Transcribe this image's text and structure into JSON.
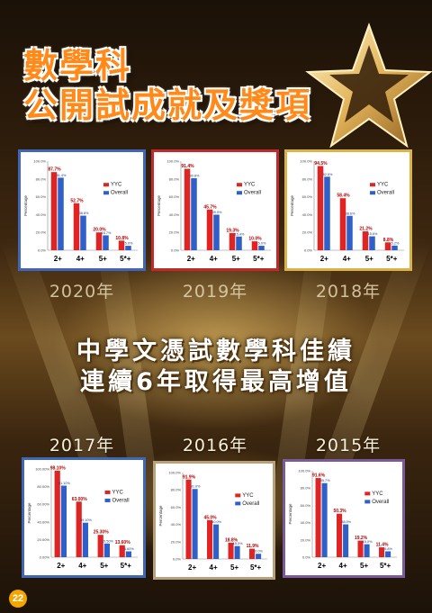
{
  "title": {
    "line1": "數學科",
    "line2": "公開試成就及獎項"
  },
  "headline": {
    "line1": "中學文憑試數學科佳績",
    "line2": "連續6年取得最高增值"
  },
  "page_number": "22",
  "colors": {
    "yyc": "#e02424",
    "overall": "#2f5fc8",
    "card_border_2020": "#3f66b8",
    "card_border_2019": "#c22a2a",
    "card_border_2018": "#d9b34a",
    "card_border_2017": "#3f66b8",
    "card_border_2016": "#b7a07a",
    "card_border_2015": "#7a5a9a"
  },
  "chart_data": [
    {
      "id": "c2020",
      "year_label": "2020年",
      "type": "bar",
      "categories": [
        "2+",
        "4+",
        "5+",
        "5*+"
      ],
      "series": [
        {
          "name": "YYC",
          "values": [
            87.7,
            52.7,
            20.0,
            10.8
          ],
          "labels": [
            "87.7%",
            "52.7%",
            "20.0%",
            "10.8%"
          ]
        },
        {
          "name": "Overall",
          "values": [
            81.4,
            38.8,
            16.7,
            5.0
          ],
          "labels": [
            "81.4%",
            "38.8%",
            "16.7%",
            "5.0%"
          ]
        }
      ],
      "ylabel": "Percentage",
      "yticks": [
        "0.0%",
        "20.0%",
        "40.0%",
        "60.0%",
        "80.0%",
        "100.0%"
      ],
      "ylim": [
        0,
        100
      ],
      "legend": "right",
      "grid": false
    },
    {
      "id": "c2019",
      "year_label": "2019年",
      "type": "bar",
      "categories": [
        "2+",
        "4+",
        "5+",
        "5*+"
      ],
      "series": [
        {
          "name": "YYC",
          "values": [
            91.4,
            45.7,
            19.3,
            10.0
          ],
          "labels": [
            "91.4%",
            "45.7%",
            "19.3%",
            "10.0%"
          ]
        },
        {
          "name": "Overall",
          "values": [
            80.8,
            39.9,
            15.4,
            5.0
          ],
          "labels": [
            "80.8%",
            "39.9%",
            "15.4%",
            "5.0%"
          ]
        }
      ],
      "ylabel": "Percentage",
      "yticks": [
        "0.0%",
        "20.0%",
        "40.0%",
        "60.0%",
        "80.0%",
        "100.0%"
      ],
      "ylim": [
        0,
        100
      ],
      "legend": "right",
      "grid": false
    },
    {
      "id": "c2018",
      "year_label": "2018年",
      "type": "bar",
      "categories": [
        "2+",
        "4+",
        "5+",
        "5*+"
      ],
      "series": [
        {
          "name": "YYC",
          "values": [
            94.5,
            58.4,
            21.2,
            8.8
          ],
          "labels": [
            "94.5%",
            "58.4%",
            "21.2%",
            "8.8%"
          ]
        },
        {
          "name": "Overall",
          "values": [
            82.5,
            38.6,
            15.6,
            5.2
          ],
          "labels": [
            "82.5%",
            "38.6%",
            "15.6%",
            "5.2%"
          ]
        }
      ],
      "ylabel": "Percentage",
      "yticks": [
        "0.0%",
        "20.0%",
        "40.0%",
        "60.0%",
        "80.0%",
        "100.0%"
      ],
      "ylim": [
        0,
        100
      ],
      "legend": "right",
      "grid": false
    },
    {
      "id": "c2017",
      "year_label": "2017年",
      "type": "bar",
      "categories": [
        "2+",
        "4+",
        "5+",
        "5*+"
      ],
      "series": [
        {
          "name": "YYC",
          "values": [
            98.1,
            63.0,
            25.3,
            13.6
          ],
          "labels": [
            "98.10%",
            "63.00%",
            "25.30%",
            "13.60%"
          ]
        },
        {
          "name": "Overall",
          "values": [
            81.1,
            39.1,
            15.5,
            6.6
          ],
          "labels": [
            "81.10%",
            "39.10%",
            "15.50%",
            "6.60%"
          ]
        }
      ],
      "ylabel": "Percentage",
      "yticks": [
        "0.00%",
        "20.00%",
        "40.00%",
        "60.00%",
        "80.00%",
        "100.00%"
      ],
      "ylim": [
        0,
        100
      ],
      "legend": "right",
      "grid": false
    },
    {
      "id": "c2016",
      "year_label": "2016年",
      "type": "bar",
      "categories": [
        "2+",
        "4+",
        "5+",
        "5*+"
      ],
      "series": [
        {
          "name": "YYC",
          "values": [
            91.9,
            45.0,
            18.8,
            11.9
          ],
          "labels": [
            "91.9%",
            "45.0%",
            "18.8%",
            "11.9%"
          ]
        },
        {
          "name": "Overall",
          "values": [
            81.0,
            40.0,
            15.0,
            6.0
          ],
          "labels": [
            "81.0%",
            "40.0%",
            "15.0%",
            "6.0%"
          ]
        }
      ],
      "ylabel": "Percentage",
      "yticks": [
        "0.0%",
        "20.0%",
        "40.0%",
        "60.0%",
        "80.0%",
        "100.0%"
      ],
      "ylim": [
        0,
        100
      ],
      "legend": "right",
      "grid": false
    },
    {
      "id": "c2015",
      "year_label": "2015年",
      "type": "bar",
      "categories": [
        "2+",
        "4+",
        "5+",
        "5*+"
      ],
      "series": [
        {
          "name": "YYC",
          "values": [
            91.6,
            50.3,
            19.2,
            11.4
          ],
          "labels": [
            "91.6%",
            "50.3%",
            "19.2%",
            "11.4%"
          ]
        },
        {
          "name": "Overall",
          "values": [
            85.7,
            38.0,
            15.0,
            6.8
          ],
          "labels": [
            "85.7%",
            "38.0%",
            "15.0%",
            "6.8%"
          ]
        }
      ],
      "ylabel": "Percentage",
      "yticks": [
        "0.0%",
        "20.0%",
        "40.0%",
        "60.0%",
        "80.0%",
        "100.0%"
      ],
      "ylim": [
        0,
        100
      ],
      "legend": "right",
      "grid": false
    }
  ]
}
